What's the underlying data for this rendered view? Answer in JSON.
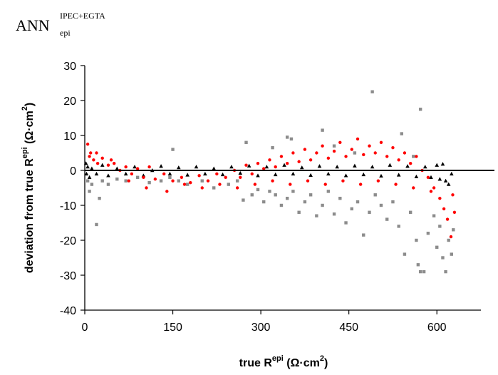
{
  "chart_data": {
    "type": "scatter",
    "title": {
      "base": "ANN",
      "superscript": "IPEC+EGTA",
      "subscript": "epi"
    },
    "xlabel": {
      "prefix": "true R",
      "superscript": "epi",
      "units_open": " (Ω·cm",
      "units_exp": "2",
      "units_close": ")"
    },
    "ylabel": {
      "prefix": "deviation from true R",
      "superscript": "epi",
      "units_open": " (Ω·cm",
      "units_exp": "2",
      "units_close": ")"
    },
    "xlim": [
      0,
      675
    ],
    "ylim": [
      -40,
      30
    ],
    "x_ticks": [
      0,
      150,
      300,
      450,
      600
    ],
    "x_tick_labels": [
      "0",
      "150",
      "300",
      "450",
      "600"
    ],
    "y_ticks": [
      30,
      20,
      10,
      0,
      -10,
      -20,
      -30,
      -40
    ],
    "y_tick_labels": [
      "30",
      "20",
      "10",
      "0",
      "-10",
      "-20",
      "-30",
      "-40"
    ],
    "grid": false,
    "legend": "none",
    "reference_line_y": 0,
    "series": [
      {
        "marker": "square",
        "color": "#8c8c8c",
        "points": [
          [
            5,
            -3
          ],
          [
            8,
            -6
          ],
          [
            12,
            -4
          ],
          [
            20,
            -15.5
          ],
          [
            25,
            -8
          ],
          [
            30,
            -3
          ],
          [
            40,
            -4
          ],
          [
            55,
            -2.5
          ],
          [
            70,
            -3
          ],
          [
            90,
            -2
          ],
          [
            110,
            -3.5
          ],
          [
            130,
            -3
          ],
          [
            145,
            -2
          ],
          [
            160,
            -3
          ],
          [
            175,
            -4
          ],
          [
            200,
            -3
          ],
          [
            220,
            -5
          ],
          [
            245,
            -4
          ],
          [
            260,
            -3
          ],
          [
            270,
            -8.5
          ],
          [
            285,
            -7
          ],
          [
            295,
            -5.5
          ],
          [
            305,
            -9
          ],
          [
            315,
            -6
          ],
          [
            325,
            -7
          ],
          [
            335,
            -10
          ],
          [
            345,
            -8
          ],
          [
            355,
            -6
          ],
          [
            365,
            -12
          ],
          [
            375,
            -9
          ],
          [
            385,
            -7
          ],
          [
            395,
            -13
          ],
          [
            405,
            -10
          ],
          [
            415,
            -6
          ],
          [
            425,
            -12.5
          ],
          [
            435,
            -8
          ],
          [
            445,
            -15
          ],
          [
            455,
            -11
          ],
          [
            465,
            -9
          ],
          [
            475,
            -18.5
          ],
          [
            485,
            -12
          ],
          [
            495,
            -7
          ],
          [
            505,
            -10
          ],
          [
            515,
            -14
          ],
          [
            525,
            -9
          ],
          [
            535,
            -16
          ],
          [
            545,
            -24
          ],
          [
            555,
            -12
          ],
          [
            565,
            -20
          ],
          [
            568,
            -27
          ],
          [
            572,
            -29
          ],
          [
            578,
            -29
          ],
          [
            585,
            -18
          ],
          [
            595,
            -13
          ],
          [
            600,
            -22
          ],
          [
            605,
            -16
          ],
          [
            610,
            -25
          ],
          [
            615,
            -29
          ],
          [
            620,
            -20
          ],
          [
            625,
            -24
          ],
          [
            628,
            -17
          ],
          [
            275,
            8
          ],
          [
            345,
            9.5
          ],
          [
            352,
            9
          ],
          [
            405,
            11.5
          ],
          [
            425,
            7
          ],
          [
            460,
            5
          ],
          [
            490,
            22.5
          ],
          [
            540,
            10.5
          ],
          [
            572,
            17.5
          ],
          [
            150,
            6
          ],
          [
            320,
            6.5
          ],
          [
            560,
            4
          ]
        ]
      },
      {
        "marker": "triangle",
        "color": "#000000",
        "points": [
          [
            2,
            2
          ],
          [
            3,
            -1
          ],
          [
            5,
            1
          ],
          [
            8,
            -2
          ],
          [
            12,
            0.5
          ],
          [
            20,
            -1
          ],
          [
            30,
            1.5
          ],
          [
            40,
            -1.5
          ],
          [
            55,
            0.5
          ],
          [
            70,
            -1
          ],
          [
            85,
            1
          ],
          [
            100,
            -1.5
          ],
          [
            115,
            0
          ],
          [
            130,
            1.2
          ],
          [
            145,
            -1
          ],
          [
            160,
            0.8
          ],
          [
            175,
            -1.3
          ],
          [
            190,
            1
          ],
          [
            205,
            -1
          ],
          [
            220,
            0.5
          ],
          [
            235,
            -1.2
          ],
          [
            250,
            1
          ],
          [
            265,
            -0.8
          ],
          [
            280,
            1.3
          ],
          [
            295,
            -1.5
          ],
          [
            310,
            1
          ],
          [
            325,
            -1.2
          ],
          [
            340,
            1.5
          ],
          [
            355,
            -1
          ],
          [
            370,
            0.8
          ],
          [
            385,
            -1.4
          ],
          [
            400,
            1.2
          ],
          [
            415,
            -1
          ],
          [
            430,
            1
          ],
          [
            445,
            -1.5
          ],
          [
            460,
            1.3
          ],
          [
            475,
            -1.2
          ],
          [
            490,
            1
          ],
          [
            505,
            -1.6
          ],
          [
            520,
            1.5
          ],
          [
            535,
            -1.3
          ],
          [
            550,
            1.2
          ],
          [
            565,
            -1.8
          ],
          [
            580,
            1
          ],
          [
            590,
            -2
          ],
          [
            600,
            1.5
          ],
          [
            605,
            -2.5
          ],
          [
            610,
            1.8
          ],
          [
            615,
            -3
          ],
          [
            620,
            -4
          ],
          [
            625,
            -1
          ]
        ]
      },
      {
        "marker": "circle",
        "color": "#ff0000",
        "points": [
          [
            5,
            7.5
          ],
          [
            8,
            4
          ],
          [
            10,
            5
          ],
          [
            15,
            3
          ],
          [
            22,
            2
          ],
          [
            30,
            3.5
          ],
          [
            40,
            1.5
          ],
          [
            50,
            2
          ],
          [
            60,
            0
          ],
          [
            70,
            1
          ],
          [
            80,
            -1
          ],
          [
            90,
            0.5
          ],
          [
            100,
            -2
          ],
          [
            110,
            1
          ],
          [
            120,
            -2.5
          ],
          [
            135,
            -1
          ],
          [
            150,
            -3
          ],
          [
            165,
            -2
          ],
          [
            180,
            -3.5
          ],
          [
            195,
            -1.5
          ],
          [
            210,
            -3
          ],
          [
            225,
            -1
          ],
          [
            240,
            -2
          ],
          [
            255,
            0
          ],
          [
            265,
            -2
          ],
          [
            275,
            1.5
          ],
          [
            285,
            -1
          ],
          [
            295,
            2
          ],
          [
            305,
            0.5
          ],
          [
            315,
            3
          ],
          [
            325,
            1
          ],
          [
            335,
            4
          ],
          [
            345,
            2
          ],
          [
            355,
            5
          ],
          [
            365,
            2.5
          ],
          [
            375,
            6
          ],
          [
            385,
            3
          ],
          [
            395,
            5
          ],
          [
            405,
            7
          ],
          [
            415,
            3.5
          ],
          [
            425,
            5.5
          ],
          [
            435,
            8
          ],
          [
            445,
            4
          ],
          [
            455,
            6
          ],
          [
            465,
            9
          ],
          [
            475,
            4.5
          ],
          [
            485,
            7
          ],
          [
            495,
            5
          ],
          [
            505,
            8
          ],
          [
            515,
            4
          ],
          [
            525,
            6.5
          ],
          [
            535,
            3
          ],
          [
            545,
            5
          ],
          [
            555,
            2
          ],
          [
            565,
            4
          ],
          [
            575,
            0
          ],
          [
            585,
            -2
          ],
          [
            595,
            -5
          ],
          [
            605,
            -8
          ],
          [
            612,
            -11
          ],
          [
            618,
            -14
          ],
          [
            624,
            -19
          ],
          [
            627,
            -7
          ],
          [
            630,
            -12
          ],
          [
            20,
            5
          ],
          [
            45,
            3
          ],
          [
            75,
            -3
          ],
          [
            105,
            -5
          ],
          [
            140,
            -6
          ],
          [
            170,
            -4
          ],
          [
            200,
            -5
          ],
          [
            230,
            -4
          ],
          [
            260,
            -5
          ],
          [
            290,
            -4
          ],
          [
            320,
            -3
          ],
          [
            350,
            -4
          ],
          [
            380,
            -3
          ],
          [
            410,
            -4
          ],
          [
            440,
            -3
          ],
          [
            470,
            -4
          ],
          [
            500,
            -3
          ],
          [
            530,
            -4
          ],
          [
            560,
            -5
          ],
          [
            590,
            -6
          ]
        ]
      }
    ]
  }
}
